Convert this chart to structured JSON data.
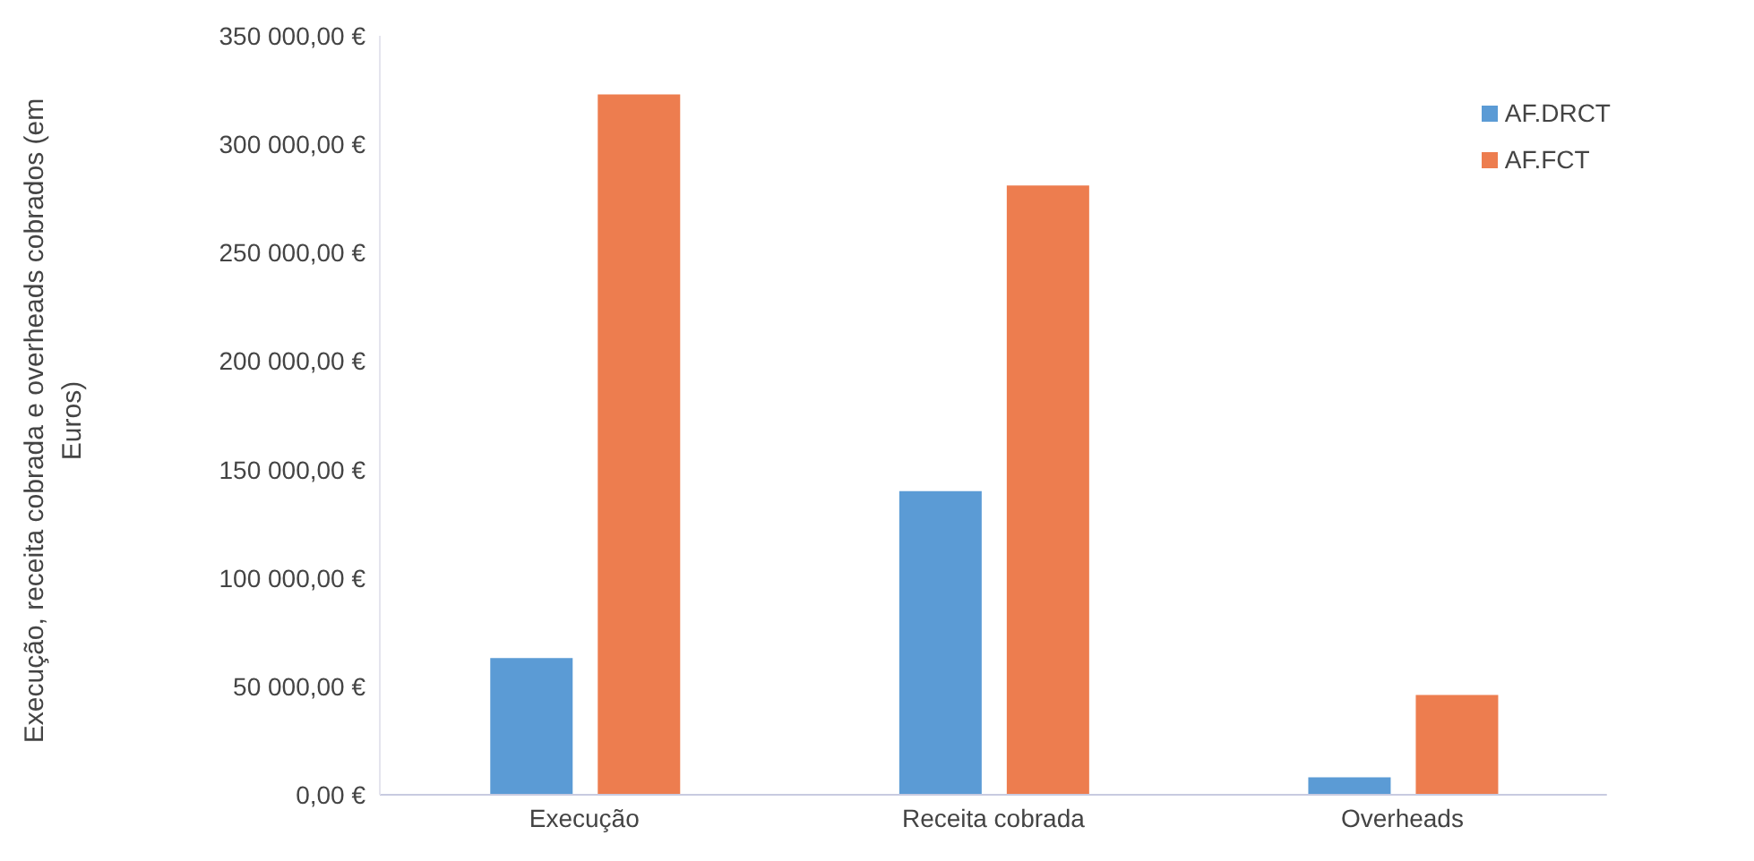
{
  "chart_data": {
    "type": "bar",
    "ylabel": "Execução, receita cobrada e overheads cobrados  (em Euros)",
    "categories": [
      "Execução",
      "Receita cobrada",
      "Overheads"
    ],
    "series": [
      {
        "name": "AF.DRCT",
        "color": "#5b9bd5",
        "values": [
          63000,
          140000,
          8000
        ]
      },
      {
        "name": "AF.FCT",
        "color": "#ed7d4f",
        "values": [
          323000,
          281000,
          46000
        ]
      }
    ],
    "ylim": [
      0,
      350000
    ],
    "yticks": [
      {
        "value": 0,
        "label": "0,00 €"
      },
      {
        "value": 50000,
        "label": "50 000,00 €"
      },
      {
        "value": 100000,
        "label": "100 000,00 €"
      },
      {
        "value": 150000,
        "label": "150 000,00 €"
      },
      {
        "value": 200000,
        "label": "200 000,00 €"
      },
      {
        "value": 250000,
        "label": "250 000,00 €"
      },
      {
        "value": 300000,
        "label": "300 000,00 €"
      },
      {
        "value": 350000,
        "label": "350 000,00 €"
      }
    ],
    "grid": false,
    "legend": "top right"
  }
}
